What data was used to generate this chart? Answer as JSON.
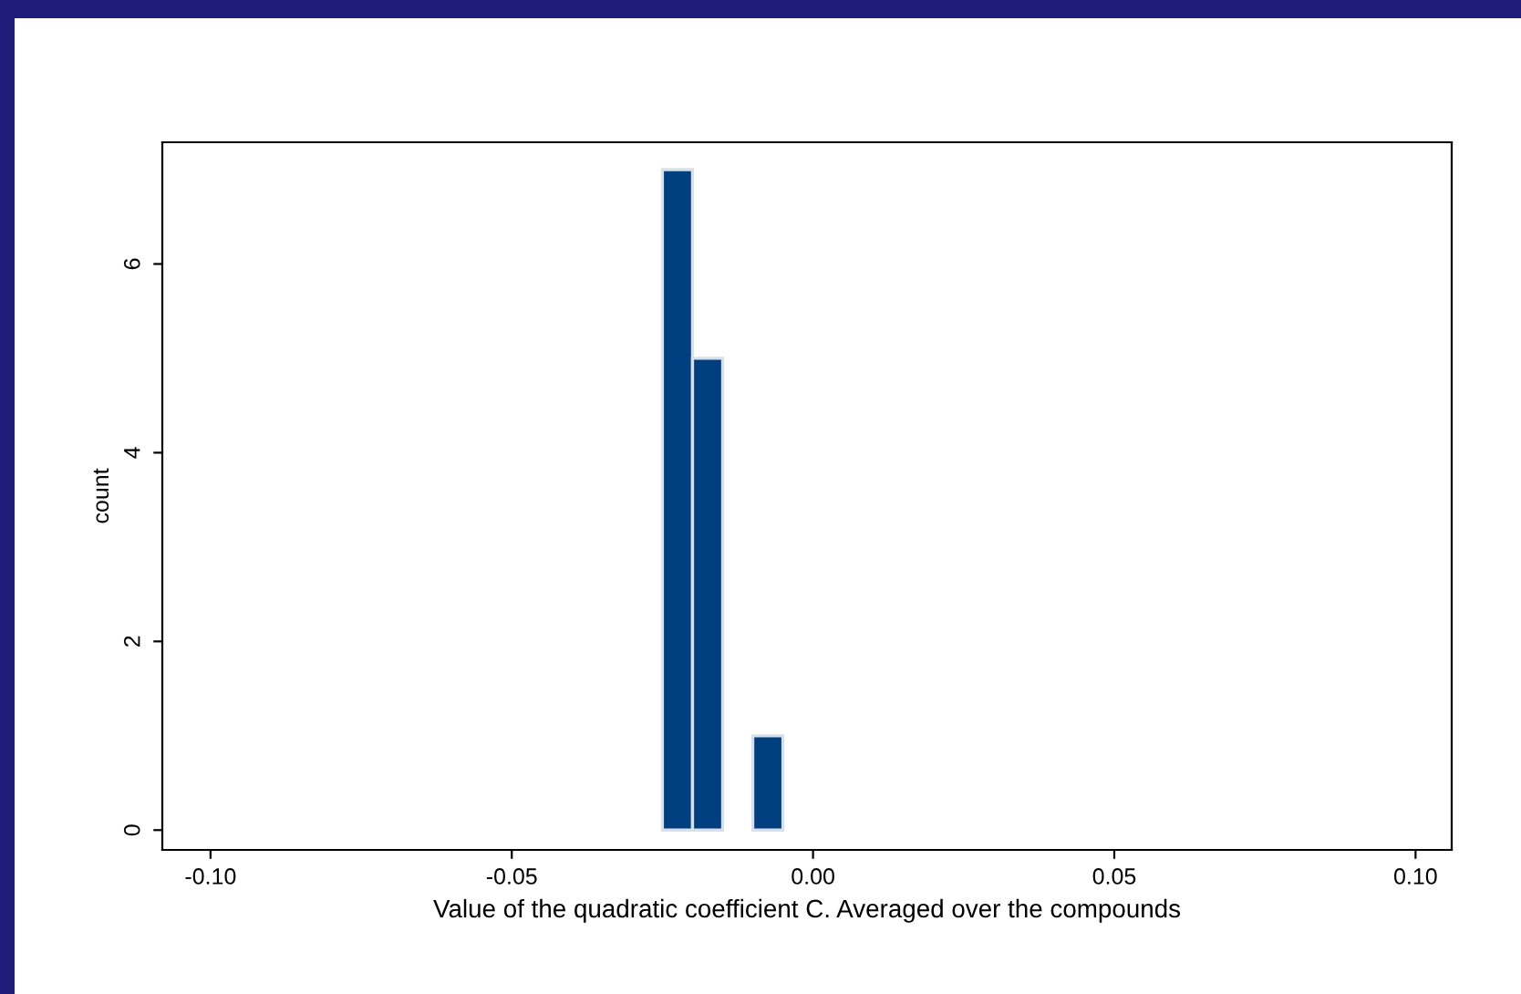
{
  "chart_data": {
    "type": "histogram",
    "xlabel": "Value of the quadratic coefficient C. Averaged over the compounds",
    "ylabel": "count",
    "bins": [
      -0.025,
      -0.02,
      -0.015,
      -0.01,
      -0.005
    ],
    "values": [
      7,
      5,
      0,
      1
    ],
    "color": "#003f7f",
    "xlim": [
      -0.108,
      0.106
    ],
    "ylim": [
      -0.21,
      7.29
    ],
    "xticks": [
      {
        "value": -0.1,
        "label": "-0.10"
      },
      {
        "value": -0.05,
        "label": "-0.05"
      },
      {
        "value": 0,
        "label": "0.00"
      },
      {
        "value": 0.05,
        "label": "0.05"
      },
      {
        "value": 0.1,
        "label": "0.10"
      }
    ],
    "yticks": [
      0,
      2,
      4,
      6
    ],
    "grid": false
  }
}
